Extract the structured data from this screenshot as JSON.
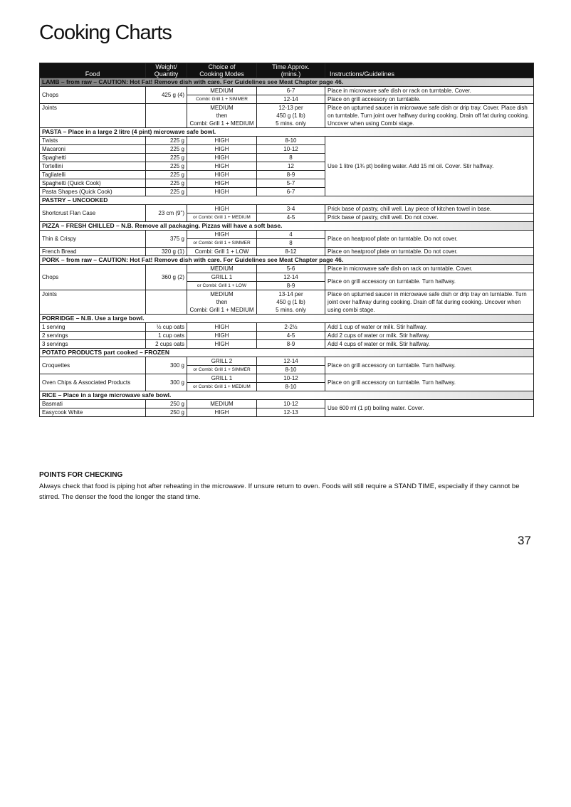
{
  "title": "Cooking Charts",
  "headers": [
    "Food",
    "Weight/\nQuantity",
    "Choice of\nCooking Modes",
    "Time Approx.\n(mins.)",
    "Instructions/Guidelines"
  ],
  "sections": [
    {
      "title": "LAMB – from raw – CAUTION: Hot Fat! Remove dish with care. For Guidelines see Meat Chapter page 46.",
      "dark": true,
      "items": [
        {
          "food": "Chops",
          "weight": "425 g (4)",
          "lines": [
            {
              "mode": "MEDIUM",
              "time": "6-7",
              "instr": "Place in microwave safe dish or rack on turntable. Cover."
            },
            {
              "mode": "Combi: Grill 1 + SIMMER",
              "small": true,
              "time": "12-14",
              "instr": "Place on grill accessory on turntable."
            }
          ]
        },
        {
          "food": "Joints",
          "weight": "",
          "lines": [
            {
              "mode": "MEDIUM\nthen\nCombi: Grill 1 + MEDIUM",
              "time": "12-13 per\n450 g (1 lb)\n5 mins. only",
              "instr": "Place on upturned saucer in microwave safe dish or drip tray. Cover. Place dish on turntable. Turn joint over halfway during cooking. Drain off fat during cooking. Uncover when using Combi stage."
            }
          ]
        }
      ]
    },
    {
      "title": "PASTA – Place in a large 2 litre (4 pint) microwave safe bowl.",
      "items": [
        {
          "food": "Twists",
          "weight": "225 g",
          "lines": [
            {
              "mode": "HIGH",
              "time": "8-10",
              "instr": "Use 1 litre (1¾ pt) boiling water. Add 15 ml oil. Cover. Stir halfway.",
              "span": 7
            }
          ]
        },
        {
          "food": "Macaroni",
          "weight": "225 g",
          "lines": [
            {
              "mode": "HIGH",
              "time": "10-12"
            }
          ]
        },
        {
          "food": "Spaghetti",
          "weight": "225 g",
          "lines": [
            {
              "mode": "HIGH",
              "time": "8"
            }
          ]
        },
        {
          "food": "Tortellini",
          "weight": "225 g",
          "lines": [
            {
              "mode": "HIGH",
              "time": "12"
            }
          ]
        },
        {
          "food": "Tagliatelli",
          "weight": "225 g",
          "lines": [
            {
              "mode": "HIGH",
              "time": "8-9"
            }
          ]
        },
        {
          "food": "Spaghetti (Quick Cook)",
          "weight": "225 g",
          "lines": [
            {
              "mode": "HIGH",
              "time": "5-7"
            }
          ]
        },
        {
          "food": "Pasta Shapes (Quick Cook)",
          "weight": "225 g",
          "lines": [
            {
              "mode": "HIGH",
              "time": "6-7"
            }
          ]
        }
      ]
    },
    {
      "title": "PASTRY – UNCOOKED",
      "items": [
        {
          "food": "Shortcrust Flan Case",
          "weight": "23 cm (9\")",
          "lines": [
            {
              "mode": "HIGH",
              "time": "3-4",
              "instr": "Prick base of pastry, chill well. Lay piece of kitchen towel in base."
            },
            {
              "mode": "or Combi: Grill 1 + MEDIUM",
              "small": true,
              "time": "4-5",
              "instr": "Prick base of pastry, chill well. Do not cover."
            }
          ]
        }
      ]
    },
    {
      "title": "PIZZA – FRESH CHILLED – N.B. Remove all packaging. Pizzas will have a soft base.",
      "items": [
        {
          "food": "Thin & Crispy",
          "weight": "375 g",
          "lines": [
            {
              "mode": "HIGH",
              "time": "4",
              "instr": "Place on heatproof plate on turntable. Do not cover.",
              "span": 2
            },
            {
              "mode": "or Combi: Grill 1 + SIMMER",
              "small": true,
              "time": "8"
            }
          ]
        },
        {
          "food": "French Bread",
          "weight": "320 g (1)",
          "lines": [
            {
              "mode": "Combi: Grill 1 + LOW",
              "time": "8-12",
              "instr": "Place on heatproof plate on turntable. Do not cover."
            }
          ]
        }
      ]
    },
    {
      "title": "PORK – from raw – CAUTION: Hot Fat! Remove dish with care. For Guidelines see Meat Chapter page 46.",
      "items": [
        {
          "food": "Chops",
          "weight": "360 g (2)",
          "lines": [
            {
              "mode": "MEDIUM",
              "time": "5-6",
              "instr": "Place in microwave safe dish on rack on turntable. Cover."
            },
            {
              "mode": "GRILL 1",
              "time": "12-14",
              "instr": "Place on grill accessory on turntable. Turn halfway.",
              "span": 2
            },
            {
              "mode": "or Combi: Grill 1 + LOW",
              "small": true,
              "time": "8-9"
            }
          ]
        },
        {
          "food": "Joints",
          "weight": "",
          "lines": [
            {
              "mode": "MEDIUM\nthen\nCombi: Grill 1 + MEDIUM",
              "time": "13-14 per\n450 g (1 lb)\n5 mins. only",
              "instr": "Place on upturned saucer in microwave safe dish or drip tray on turntable. Turn joint over halfway during cooking. Drain off fat during cooking. Uncover when using combi stage."
            }
          ]
        }
      ]
    },
    {
      "title": "PORRIDGE – N.B. Use a large bowl.",
      "items": [
        {
          "food": "1 serving",
          "weight": "½ cup oats",
          "lines": [
            {
              "mode": "HIGH",
              "time": "2-2½",
              "instr": "Add 1 cup of water or milk. Stir halfway."
            }
          ]
        },
        {
          "food": "2 servings",
          "weight": "1 cup oats",
          "lines": [
            {
              "mode": "HIGH",
              "time": "4-5",
              "instr": "Add 2 cups of water or milk. Stir halfway."
            }
          ]
        },
        {
          "food": "3 servings",
          "weight": "2 cups oats",
          "lines": [
            {
              "mode": "HIGH",
              "time": "8-9",
              "instr": "Add 4 cups of water or milk. Stir halfway."
            }
          ]
        }
      ]
    },
    {
      "title": "POTATO PRODUCTS part cooked – FROZEN",
      "items": [
        {
          "food": "Croquettes",
          "weight": "300 g",
          "lines": [
            {
              "mode": "GRILL 2",
              "time": "12-14",
              "instr": "Place on grill accessory on turntable. Turn halfway.",
              "span": 2
            },
            {
              "mode": "or Combi: Grill 1 + SIMMER",
              "small": true,
              "time": "8-10"
            }
          ]
        },
        {
          "food": "Oven Chips & Associated Products",
          "weight": "300 g",
          "lines": [
            {
              "mode": "GRILL 1",
              "time": "10-12",
              "instr": "Place on grill accessory on turntable. Turn halfway.",
              "span": 2
            },
            {
              "mode": "or Combi: Grill 1 + MEDIUM",
              "small": true,
              "time": "8-10"
            }
          ]
        }
      ]
    },
    {
      "title": "RICE – Place in a large microwave safe bowl.",
      "items": [
        {
          "food": "Basmati",
          "weight": "250 g",
          "lines": [
            {
              "mode": "MEDIUM",
              "time": "10-12",
              "instr": "Use 600 ml (1 pt) boiling water. Cover.",
              "span": 2
            }
          ]
        },
        {
          "food": "Easycook White",
          "weight": "250 g",
          "lines": [
            {
              "mode": "HIGH",
              "time": "12-13"
            }
          ]
        }
      ]
    }
  ],
  "points_for_checking": {
    "heading": "POINTS FOR CHECKING",
    "text": "Always check that food is piping hot after reheating in the microwave. If unsure return to oven. Foods will still require a STAND TIME, especially if they cannot be stirred. The denser the food the longer the stand time."
  },
  "page_number": "37"
}
